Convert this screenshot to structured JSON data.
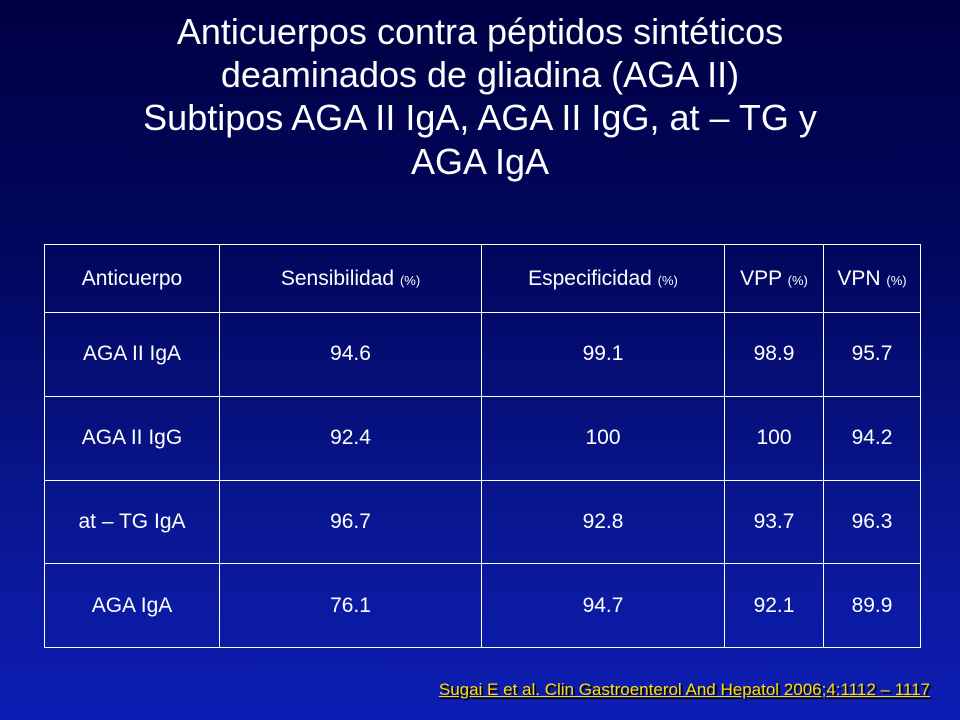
{
  "title": [
    "Anticuerpos contra péptidos sintéticos",
    "deaminados de gliadina (AGA II)",
    "Subtipos AGA II IgA, AGA II IgG, at – TG y",
    "AGA IgA"
  ],
  "table": {
    "headers": [
      {
        "label": "Anticuerpo",
        "unit": ""
      },
      {
        "label": "Sensibilidad",
        "unit": "(%)"
      },
      {
        "label": "Especificidad",
        "unit": "(%)"
      },
      {
        "label": "VPP",
        "unit": "(%)"
      },
      {
        "label": "VPN",
        "unit": "(%)"
      }
    ],
    "rows": [
      [
        "AGA II IgA",
        "94.6",
        "99.1",
        "98.9",
        "95.7"
      ],
      [
        "AGA II IgG",
        "92.4",
        "100",
        "100",
        "94.2"
      ],
      [
        "at – TG IgA",
        "96.7",
        "92.8",
        "93.7",
        "96.3"
      ],
      [
        "AGA IgA",
        "76.1",
        "94.7",
        "92.1",
        "89.9"
      ]
    ]
  },
  "citation": "Sugai E et al. Clin Gastroenterol And Hepatol 2006;4:1112 – 1117",
  "colors": {
    "background_top": "#000044",
    "background_bottom": "#0d1db4",
    "text": "#ffffff",
    "citation": "#ffdd00"
  }
}
